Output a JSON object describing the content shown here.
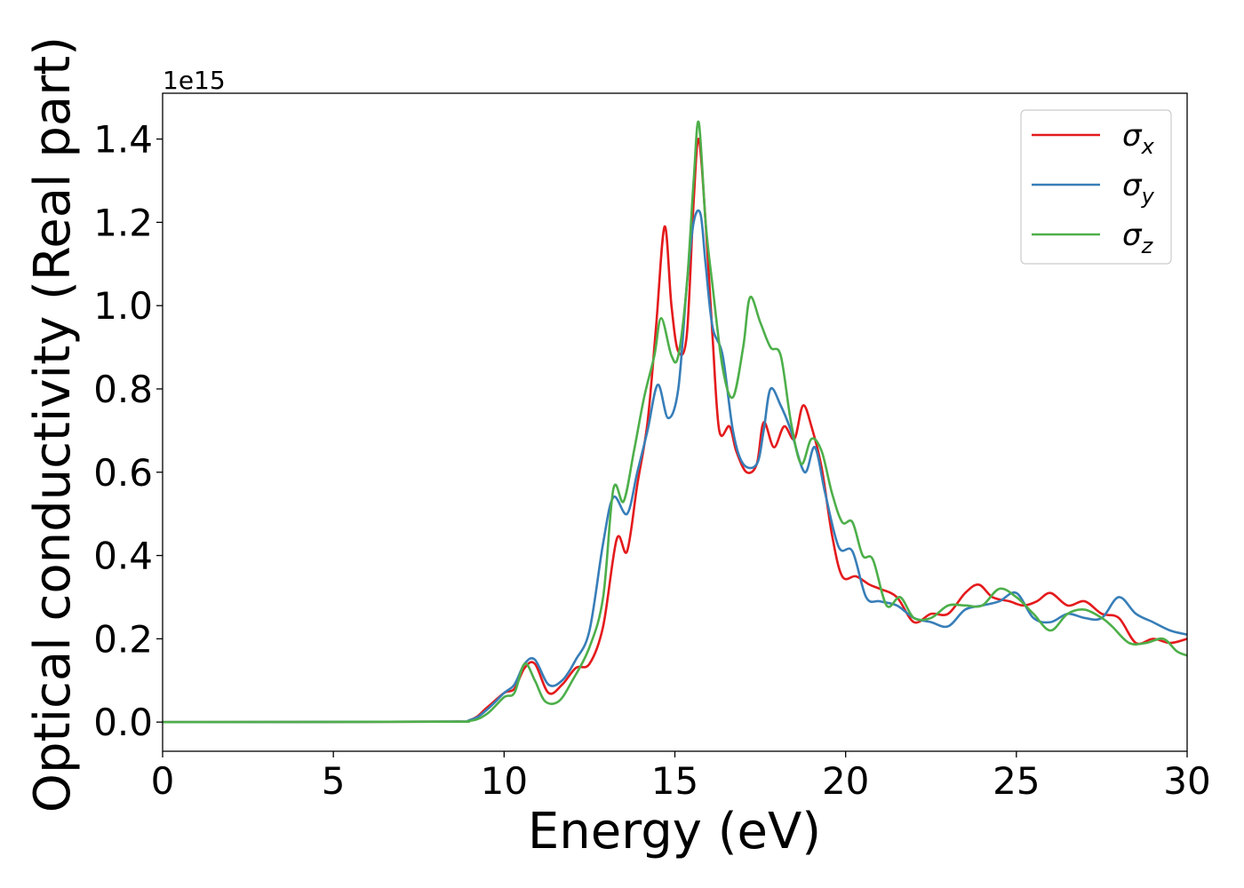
{
  "chart_data": {
    "type": "line",
    "xlabel": "Energy (eV)",
    "ylabel": "Optical conductivity (Real part)",
    "y_offset_label": "1e15",
    "xlim": [
      0,
      30
    ],
    "ylim": [
      -0.07,
      1.51
    ],
    "x_ticks": [
      0,
      5,
      10,
      15,
      20,
      25,
      30
    ],
    "x_tick_labels": [
      "0",
      "5",
      "10",
      "15",
      "20",
      "25",
      "30"
    ],
    "y_ticks": [
      0.0,
      0.2,
      0.4,
      0.6,
      0.8,
      1.0,
      1.2,
      1.4
    ],
    "y_tick_labels": [
      "0.0",
      "0.2",
      "0.4",
      "0.6",
      "0.8",
      "1.0",
      "1.2",
      "1.4"
    ],
    "grid": false,
    "legend_position": "top-right",
    "series": [
      {
        "name": "σ_x",
        "label_main": "σ",
        "label_sub": "x",
        "color": "#e41a1c",
        "points": [
          [
            0,
            0
          ],
          [
            8,
            0.001
          ],
          [
            9,
            0.005
          ],
          [
            9.5,
            0.035
          ],
          [
            10,
            0.07
          ],
          [
            10.3,
            0.08
          ],
          [
            10.6,
            0.13
          ],
          [
            10.9,
            0.14
          ],
          [
            11.3,
            0.07
          ],
          [
            11.7,
            0.09
          ],
          [
            12.1,
            0.13
          ],
          [
            12.5,
            0.14
          ],
          [
            12.9,
            0.23
          ],
          [
            13.3,
            0.44
          ],
          [
            13.6,
            0.41
          ],
          [
            13.9,
            0.57
          ],
          [
            14.2,
            0.72
          ],
          [
            14.45,
            0.95
          ],
          [
            14.7,
            1.19
          ],
          [
            14.9,
            1.0
          ],
          [
            15.1,
            0.89
          ],
          [
            15.35,
            0.93
          ],
          [
            15.55,
            1.25
          ],
          [
            15.7,
            1.4
          ],
          [
            15.9,
            1.2
          ],
          [
            16.1,
            0.93
          ],
          [
            16.3,
            0.7
          ],
          [
            16.6,
            0.71
          ],
          [
            16.8,
            0.65
          ],
          [
            17.1,
            0.6
          ],
          [
            17.4,
            0.62
          ],
          [
            17.6,
            0.72
          ],
          [
            17.9,
            0.66
          ],
          [
            18.2,
            0.71
          ],
          [
            18.5,
            0.68
          ],
          [
            18.75,
            0.76
          ],
          [
            19.0,
            0.71
          ],
          [
            19.3,
            0.61
          ],
          [
            19.6,
            0.45
          ],
          [
            19.9,
            0.35
          ],
          [
            20.3,
            0.35
          ],
          [
            20.7,
            0.33
          ],
          [
            21.0,
            0.32
          ],
          [
            21.5,
            0.3
          ],
          [
            22.0,
            0.24
          ],
          [
            22.5,
            0.26
          ],
          [
            23.0,
            0.26
          ],
          [
            23.5,
            0.31
          ],
          [
            23.9,
            0.33
          ],
          [
            24.3,
            0.3
          ],
          [
            24.8,
            0.29
          ],
          [
            25.2,
            0.28
          ],
          [
            25.6,
            0.29
          ],
          [
            26.0,
            0.31
          ],
          [
            26.5,
            0.28
          ],
          [
            27.0,
            0.29
          ],
          [
            27.5,
            0.26
          ],
          [
            28.0,
            0.25
          ],
          [
            28.5,
            0.19
          ],
          [
            29.0,
            0.2
          ],
          [
            29.5,
            0.19
          ],
          [
            30,
            0.2
          ]
        ]
      },
      {
        "name": "σ_y",
        "label_main": "σ",
        "label_sub": "y",
        "color": "#377eb8",
        "points": [
          [
            0,
            0
          ],
          [
            8,
            0.001
          ],
          [
            9,
            0.005
          ],
          [
            9.5,
            0.03
          ],
          [
            10,
            0.07
          ],
          [
            10.3,
            0.09
          ],
          [
            10.6,
            0.14
          ],
          [
            10.9,
            0.15
          ],
          [
            11.3,
            0.09
          ],
          [
            11.7,
            0.1
          ],
          [
            12.1,
            0.15
          ],
          [
            12.5,
            0.22
          ],
          [
            12.9,
            0.43
          ],
          [
            13.2,
            0.54
          ],
          [
            13.6,
            0.5
          ],
          [
            13.9,
            0.6
          ],
          [
            14.2,
            0.7
          ],
          [
            14.5,
            0.81
          ],
          [
            14.8,
            0.73
          ],
          [
            15.1,
            0.8
          ],
          [
            15.35,
            1.05
          ],
          [
            15.55,
            1.2
          ],
          [
            15.75,
            1.22
          ],
          [
            15.9,
            1.1
          ],
          [
            16.1,
            0.95
          ],
          [
            16.4,
            0.88
          ],
          [
            16.7,
            0.7
          ],
          [
            17.0,
            0.62
          ],
          [
            17.4,
            0.62
          ],
          [
            17.6,
            0.7
          ],
          [
            17.8,
            0.8
          ],
          [
            18.1,
            0.76
          ],
          [
            18.4,
            0.7
          ],
          [
            18.8,
            0.6
          ],
          [
            19.1,
            0.66
          ],
          [
            19.4,
            0.55
          ],
          [
            19.8,
            0.42
          ],
          [
            20.2,
            0.41
          ],
          [
            20.6,
            0.3
          ],
          [
            21.0,
            0.29
          ],
          [
            21.5,
            0.28
          ],
          [
            22.0,
            0.25
          ],
          [
            22.5,
            0.24
          ],
          [
            23.0,
            0.23
          ],
          [
            23.5,
            0.27
          ],
          [
            24.0,
            0.28
          ],
          [
            24.5,
            0.29
          ],
          [
            25.0,
            0.31
          ],
          [
            25.5,
            0.25
          ],
          [
            26.0,
            0.24
          ],
          [
            26.5,
            0.26
          ],
          [
            27.0,
            0.25
          ],
          [
            27.5,
            0.25
          ],
          [
            28.0,
            0.3
          ],
          [
            28.5,
            0.26
          ],
          [
            29.0,
            0.24
          ],
          [
            29.5,
            0.22
          ],
          [
            30,
            0.21
          ]
        ]
      },
      {
        "name": "σ_z",
        "label_main": "σ",
        "label_sub": "z",
        "color": "#4daf4a",
        "points": [
          [
            0,
            0
          ],
          [
            8,
            0.001
          ],
          [
            9,
            0.003
          ],
          [
            9.5,
            0.02
          ],
          [
            10,
            0.06
          ],
          [
            10.3,
            0.07
          ],
          [
            10.6,
            0.14
          ],
          [
            10.9,
            0.1
          ],
          [
            11.2,
            0.05
          ],
          [
            11.6,
            0.05
          ],
          [
            12.0,
            0.1
          ],
          [
            12.5,
            0.18
          ],
          [
            12.9,
            0.3
          ],
          [
            13.2,
            0.56
          ],
          [
            13.5,
            0.53
          ],
          [
            13.8,
            0.65
          ],
          [
            14.1,
            0.78
          ],
          [
            14.4,
            0.88
          ],
          [
            14.6,
            0.97
          ],
          [
            14.9,
            0.88
          ],
          [
            15.1,
            0.88
          ],
          [
            15.35,
            1.05
          ],
          [
            15.55,
            1.3
          ],
          [
            15.7,
            1.44
          ],
          [
            15.9,
            1.2
          ],
          [
            16.1,
            1.05
          ],
          [
            16.4,
            0.85
          ],
          [
            16.7,
            0.78
          ],
          [
            17.0,
            0.9
          ],
          [
            17.2,
            1.02
          ],
          [
            17.5,
            0.96
          ],
          [
            17.8,
            0.9
          ],
          [
            18.1,
            0.88
          ],
          [
            18.4,
            0.72
          ],
          [
            18.7,
            0.62
          ],
          [
            19.0,
            0.68
          ],
          [
            19.3,
            0.65
          ],
          [
            19.6,
            0.55
          ],
          [
            19.9,
            0.48
          ],
          [
            20.2,
            0.48
          ],
          [
            20.5,
            0.4
          ],
          [
            20.8,
            0.39
          ],
          [
            21.2,
            0.28
          ],
          [
            21.6,
            0.3
          ],
          [
            22.0,
            0.25
          ],
          [
            22.5,
            0.25
          ],
          [
            23.0,
            0.28
          ],
          [
            23.5,
            0.28
          ],
          [
            24.0,
            0.28
          ],
          [
            24.5,
            0.32
          ],
          [
            25.0,
            0.3
          ],
          [
            25.5,
            0.26
          ],
          [
            26.0,
            0.22
          ],
          [
            26.5,
            0.26
          ],
          [
            27.0,
            0.27
          ],
          [
            27.5,
            0.25
          ],
          [
            27.8,
            0.23
          ],
          [
            28.3,
            0.19
          ],
          [
            28.8,
            0.19
          ],
          [
            29.3,
            0.2
          ],
          [
            29.7,
            0.17
          ],
          [
            30,
            0.16
          ]
        ]
      }
    ]
  }
}
